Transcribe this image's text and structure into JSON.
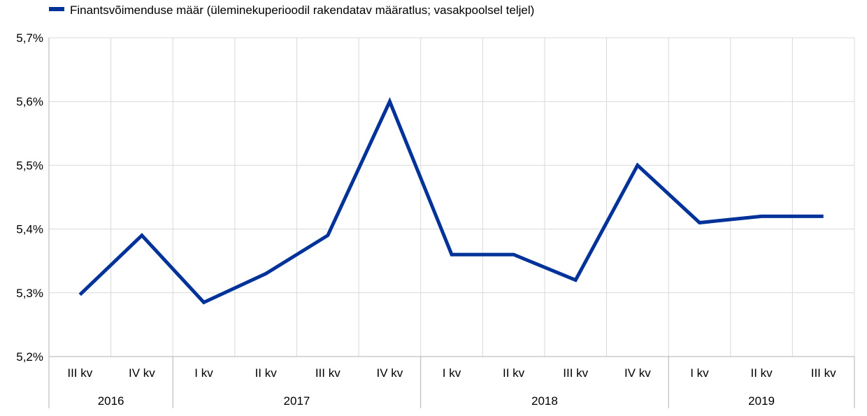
{
  "chart_data": {
    "type": "line",
    "title": "",
    "xlabel": "",
    "ylabel": "",
    "categories": [
      "III kv",
      "IV kv",
      "I kv",
      "II kv",
      "III kv",
      "IV kv",
      "I kv",
      "II kv",
      "III kv",
      "IV kv",
      "I kv",
      "II kv",
      "III kv"
    ],
    "year_groups": [
      {
        "label": "2016",
        "count": 2
      },
      {
        "label": "2017",
        "count": 4
      },
      {
        "label": "2018",
        "count": 4
      },
      {
        "label": "2019",
        "count": 3
      }
    ],
    "series": [
      {
        "name": "Finantsvõimenduse määr (üleminekuperioodil rakendatav määratlus; vasakpoolsel teljel)",
        "color": "#003299",
        "values": [
          5.297,
          5.39,
          5.285,
          5.33,
          5.39,
          5.6,
          5.36,
          5.36,
          5.32,
          5.5,
          5.41,
          5.42,
          5.42
        ]
      }
    ],
    "ylim": [
      5.2,
      5.7
    ],
    "yticks": [
      5.2,
      5.3,
      5.4,
      5.5,
      5.6,
      5.7
    ],
    "ytick_labels": [
      "5,2%",
      "5,3%",
      "5,4%",
      "5,5%",
      "5,6%",
      "5,7%"
    ],
    "grid": true,
    "legend_position": "top-left"
  }
}
